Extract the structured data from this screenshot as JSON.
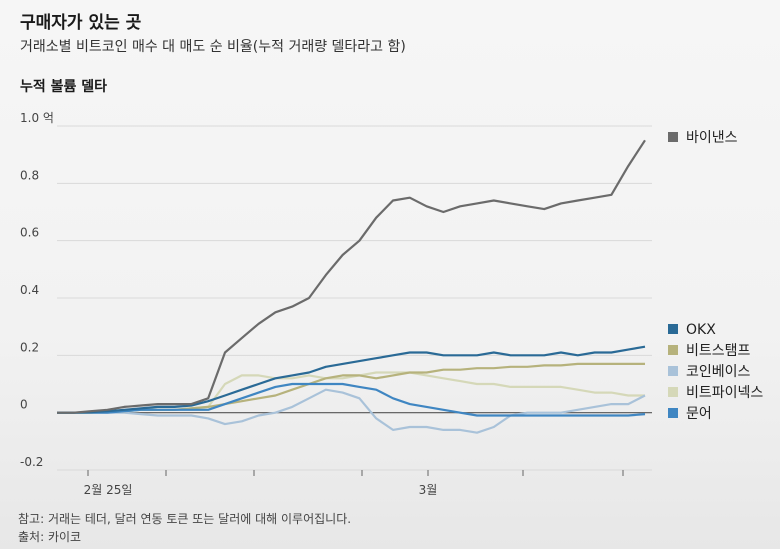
{
  "title": "구매자가 있는 곳",
  "subtitle": "거래소별 비트코인 매수 대 매도 순 비율(누적 거래량 델타라고 함)",
  "y_axis_title": "누적 볼륨 델타",
  "note": "참고: 거래는 테더, 달러 연동 토큰 또는 달러에 대해 이루어집니다.",
  "source": "출처: 카이코",
  "chart_data": {
    "type": "line",
    "title": "구매자가 있는 곳",
    "subtitle": "거래소별 비트코인 매수 대 매도 순 비율(누적 거래량 델타라고 함)",
    "ylabel": "누적 볼륨 델타",
    "xlabel": "",
    "ylim": [
      -0.2,
      1.0
    ],
    "y_ticks": [
      -0.2,
      0,
      0.2,
      0.4,
      0.6,
      0.8,
      1.0
    ],
    "y_tick_labels": [
      "-0.2",
      "0",
      "0.2",
      "0.4",
      "0.6",
      "0.8",
      "1.0 억"
    ],
    "x_tick_labels": [
      "2월 25일",
      "3월"
    ],
    "grid": true,
    "legend_position": "right",
    "x": [
      0,
      1,
      2,
      3,
      4,
      5,
      6,
      7,
      8,
      9,
      10,
      11,
      12,
      13,
      14,
      15,
      16,
      17,
      18,
      19,
      20,
      21,
      22,
      23,
      24,
      25,
      26,
      27,
      28,
      29,
      30,
      31,
      32,
      33,
      34,
      35
    ],
    "series": [
      {
        "name": "바이낸스",
        "color": "#6b6b6b",
        "values": [
          0.0,
          0.0,
          0.005,
          0.01,
          0.02,
          0.025,
          0.03,
          0.03,
          0.03,
          0.05,
          0.21,
          0.26,
          0.31,
          0.35,
          0.37,
          0.4,
          0.48,
          0.55,
          0.6,
          0.68,
          0.74,
          0.75,
          0.72,
          0.7,
          0.72,
          0.73,
          0.74,
          0.73,
          0.72,
          0.71,
          0.73,
          0.74,
          0.75,
          0.76,
          0.86,
          0.95
        ]
      },
      {
        "name": "OKX",
        "color": "#2a6a96",
        "values": [
          0.0,
          0.0,
          0.002,
          0.005,
          0.01,
          0.015,
          0.02,
          0.02,
          0.025,
          0.04,
          0.06,
          0.08,
          0.1,
          0.12,
          0.13,
          0.14,
          0.16,
          0.17,
          0.18,
          0.19,
          0.2,
          0.21,
          0.21,
          0.2,
          0.2,
          0.2,
          0.21,
          0.2,
          0.2,
          0.2,
          0.21,
          0.2,
          0.21,
          0.21,
          0.22,
          0.23
        ]
      },
      {
        "name": "비트스탬프",
        "color": "#b6b27c",
        "values": [
          0.0,
          0.0,
          0.0,
          0.002,
          0.005,
          0.01,
          0.01,
          0.01,
          0.015,
          0.02,
          0.03,
          0.04,
          0.05,
          0.06,
          0.08,
          0.1,
          0.12,
          0.13,
          0.13,
          0.12,
          0.13,
          0.14,
          0.14,
          0.15,
          0.15,
          0.155,
          0.155,
          0.16,
          0.16,
          0.165,
          0.165,
          0.17,
          0.17,
          0.17,
          0.17,
          0.17
        ]
      },
      {
        "name": "코인베이스",
        "color": "#a9c2d9",
        "values": [
          0.0,
          0.0,
          0.0,
          0.0,
          0.0,
          -0.005,
          -0.01,
          -0.01,
          -0.01,
          -0.02,
          -0.04,
          -0.03,
          -0.01,
          0.0,
          0.02,
          0.05,
          0.08,
          0.07,
          0.05,
          -0.02,
          -0.06,
          -0.05,
          -0.05,
          -0.06,
          -0.06,
          -0.07,
          -0.05,
          -0.01,
          0.0,
          0.0,
          0.0,
          0.01,
          0.02,
          0.03,
          0.03,
          0.06
        ]
      },
      {
        "name": "비트파이넥스",
        "color": "#d5d8b8",
        "values": [
          0.0,
          0.0,
          0.0,
          0.005,
          0.005,
          0.01,
          0.01,
          0.01,
          0.015,
          0.02,
          0.1,
          0.13,
          0.13,
          0.12,
          0.12,
          0.13,
          0.12,
          0.12,
          0.13,
          0.14,
          0.14,
          0.14,
          0.13,
          0.12,
          0.11,
          0.1,
          0.1,
          0.09,
          0.09,
          0.09,
          0.09,
          0.08,
          0.07,
          0.07,
          0.06,
          0.06
        ]
      },
      {
        "name": "문어",
        "color": "#3f86c2",
        "values": [
          0.0,
          0.0,
          0.0,
          0.0,
          0.005,
          0.01,
          0.01,
          0.01,
          0.01,
          0.01,
          0.03,
          0.05,
          0.07,
          0.09,
          0.1,
          0.1,
          0.1,
          0.1,
          0.09,
          0.08,
          0.05,
          0.03,
          0.02,
          0.01,
          0.0,
          -0.01,
          -0.01,
          -0.01,
          -0.01,
          -0.01,
          -0.01,
          -0.01,
          -0.01,
          -0.01,
          -0.01,
          -0.005
        ]
      }
    ]
  }
}
